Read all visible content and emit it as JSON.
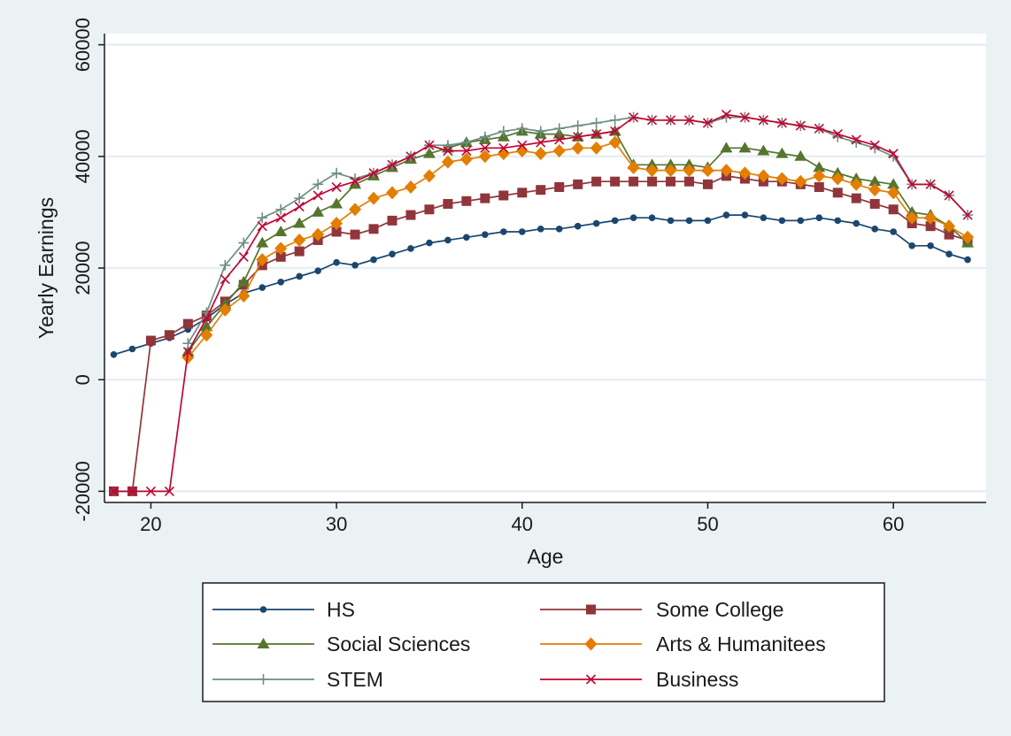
{
  "chart_data": {
    "type": "line",
    "title": "",
    "xlabel": "Age",
    "ylabel": "Yearly Earnings",
    "xlim": [
      17.5,
      65
    ],
    "ylim": [
      -22000,
      62000
    ],
    "x_ticks": [
      20,
      30,
      40,
      50,
      60
    ],
    "y_ticks": [
      -20000,
      0,
      20000,
      40000,
      60000
    ],
    "grid": "horizontal",
    "legend": "bottom",
    "x": [
      18,
      19,
      20,
      21,
      22,
      23,
      24,
      25,
      26,
      27,
      28,
      29,
      30,
      31,
      32,
      33,
      34,
      35,
      36,
      37,
      38,
      39,
      40,
      41,
      42,
      43,
      44,
      45,
      46,
      47,
      48,
      49,
      50,
      51,
      52,
      53,
      54,
      55,
      56,
      57,
      58,
      59,
      60,
      61,
      62,
      63,
      64
    ],
    "series": [
      {
        "name": "HS",
        "color": "#1a476f",
        "marker": "dot",
        "values": [
          4500,
          5500,
          6500,
          7500,
          9000,
          11000,
          13500,
          15500,
          16500,
          17500,
          18500,
          19500,
          21000,
          20500,
          21500,
          22500,
          23500,
          24500,
          25000,
          25500,
          26000,
          26500,
          26500,
          27000,
          27000,
          27500,
          28000,
          28500,
          29000,
          29000,
          28500,
          28500,
          28500,
          29500,
          29500,
          29000,
          28500,
          28500,
          29000,
          28500,
          28000,
          27000,
          26500,
          24000,
          24000,
          22500,
          21500
        ]
      },
      {
        "name": "Some College",
        "color": "#90353b",
        "marker": "square",
        "values": [
          -20000,
          -20000,
          7000,
          8000,
          10000,
          11500,
          14000,
          17000,
          20500,
          22000,
          23000,
          25000,
          26500,
          26000,
          27000,
          28500,
          29500,
          30500,
          31500,
          32000,
          32500,
          33000,
          33500,
          34000,
          34500,
          35000,
          35500,
          35500,
          35500,
          35500,
          35500,
          35500,
          35000,
          36500,
          36000,
          35500,
          35500,
          35000,
          34500,
          33500,
          32500,
          31500,
          30500,
          28000,
          27500,
          26000,
          25000
        ]
      },
      {
        "name": "Social Sciences",
        "color": "#55752f",
        "marker": "triangle",
        "values": [
          null,
          null,
          null,
          null,
          5000,
          9500,
          13500,
          17500,
          24500,
          26500,
          28000,
          30000,
          31500,
          35000,
          36500,
          38000,
          39500,
          40500,
          41500,
          42500,
          43000,
          43500,
          44500,
          44000,
          44000,
          43500,
          44000,
          44500,
          38500,
          38500,
          38500,
          38500,
          38000,
          41500,
          41500,
          41000,
          40500,
          40000,
          38000,
          37000,
          36000,
          35500,
          35000,
          30000,
          29500,
          27500,
          24500
        ]
      },
      {
        "name": "Arts & Humanitees",
        "color": "#e37e00",
        "marker": "diamond",
        "values": [
          null,
          null,
          null,
          null,
          4000,
          8000,
          12500,
          15000,
          21500,
          23500,
          25000,
          26000,
          28000,
          30500,
          32500,
          33500,
          34500,
          36500,
          39000,
          39500,
          40000,
          40500,
          41000,
          40500,
          41000,
          41500,
          41500,
          42500,
          38000,
          37500,
          37500,
          37500,
          37500,
          37500,
          37000,
          36500,
          36000,
          35500,
          36500,
          36000,
          35000,
          34000,
          33500,
          29000,
          29000,
          27500,
          25500
        ]
      },
      {
        "name": "STEM",
        "color": "#6e8e84",
        "marker": "plus",
        "values": [
          null,
          null,
          null,
          null,
          6500,
          12000,
          20500,
          24500,
          29000,
          30500,
          32500,
          35000,
          37000,
          36000,
          37000,
          38500,
          40000,
          42000,
          42000,
          42500,
          43500,
          44500,
          45000,
          44500,
          45000,
          45500,
          46000,
          46500,
          47000,
          46500,
          46500,
          46500,
          46000,
          47000,
          47000,
          46500,
          46000,
          45500,
          45000,
          43500,
          42500,
          41500,
          40000,
          35000,
          35000,
          33000,
          29500
        ]
      },
      {
        "name": "Business",
        "color": "#c10534",
        "marker": "x",
        "values": [
          -20000,
          -20000,
          -20000,
          -20000,
          5000,
          11000,
          18000,
          22000,
          27500,
          29000,
          31000,
          33000,
          34500,
          35500,
          37000,
          38500,
          40000,
          42000,
          41000,
          41000,
          41500,
          41500,
          42000,
          42500,
          43000,
          43500,
          44000,
          44500,
          47000,
          46500,
          46500,
          46500,
          46000,
          47500,
          47000,
          46500,
          46000,
          45500,
          45000,
          44000,
          43000,
          42000,
          40500,
          35000,
          35000,
          33000,
          29500
        ]
      }
    ]
  }
}
